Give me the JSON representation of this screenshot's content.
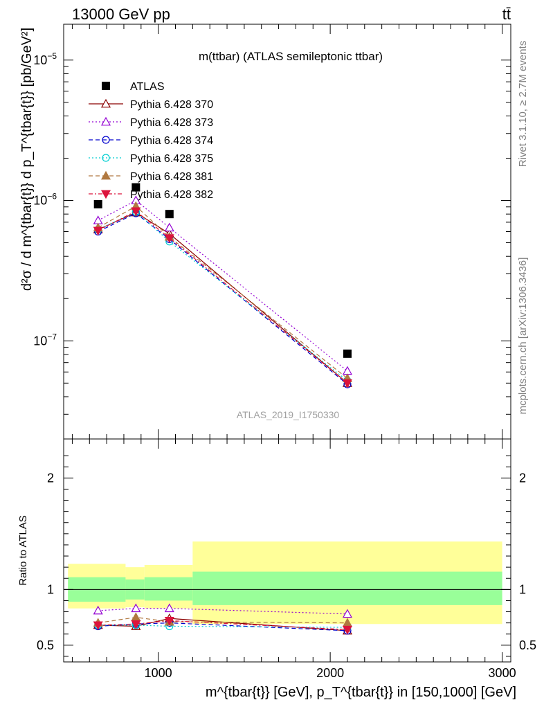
{
  "header": {
    "left": "13000 GeV pp",
    "right": "tt̄"
  },
  "side": {
    "rivet": "Rivet 3.1.10, ≥ 2.7M events",
    "mcplots": "mcplots.cern.ch [arXiv:1306.3436]"
  },
  "main_plot": {
    "title": "m(ttbar) (ATLAS semileptonic ttbar)",
    "analysis": "ATLAS_2019_I1750330",
    "ylabel": "d²σ / d m^{tbar{t}} d p_T^{tbar{t}} [pb/GeV²]"
  },
  "ratio_plot": {
    "ylabel": "Ratio to ATLAS"
  },
  "xaxis": {
    "label": "m^{tbar{t}} [GeV], p_T^{tbar{t}} in [150,1000] [GeV]"
  },
  "chart_data": [
    {
      "type": "scatter",
      "panel": "main",
      "title": "m(ttbar) (ATLAS semileptonic ttbar)",
      "xlabel": "m^{tbar{t}} [GeV], p_T^{tbar{t}} in [150,1000] [GeV]",
      "ylabel": "d²σ / d m^{tbar{t}} d p_T^{tbar{t}} [pb/GeV²]",
      "xlim": [
        450,
        3050
      ],
      "ylim": [
        2e-08,
        1.8e-05
      ],
      "yscale": "log",
      "x": [
        650,
        870,
        1065,
        2100
      ],
      "ref": {
        "name": "ATLAS",
        "marker": "square",
        "color": "#000000",
        "values": [
          9.4e-07,
          1.24e-06,
          8e-07,
          8.1e-08
        ]
      },
      "series": [
        {
          "name": "Pythia 6.428 370",
          "color": "#8b0000",
          "dash": "",
          "marker": "triangle-up-open",
          "values": [
            6.2e-07,
            8.2e-07,
            5.8e-07,
            5e-08
          ]
        },
        {
          "name": "Pythia 6.428 373",
          "color": "#9400d3",
          "dash": "2,3",
          "marker": "triangle-up-open",
          "values": [
            7.2e-07,
            1e-06,
            6.4e-07,
            6.1e-08
          ]
        },
        {
          "name": "Pythia 6.428 374",
          "color": "#0000cd",
          "dash": "6,4",
          "marker": "circle-open",
          "values": [
            6e-07,
            8.1e-07,
            5.3e-07,
            4.9e-08
          ]
        },
        {
          "name": "Pythia 6.428 375",
          "color": "#00ced1",
          "dash": "2,3",
          "marker": "circle-open",
          "values": [
            6.2e-07,
            8.3e-07,
            5.1e-07,
            5.2e-08
          ]
        },
        {
          "name": "Pythia 6.428 381",
          "color": "#b07840",
          "dash": "6,4",
          "marker": "triangle-up-filled",
          "values": [
            6.4e-07,
            9.1e-07,
            5.5e-07,
            5.4e-08
          ]
        },
        {
          "name": "Pythia 6.428 382",
          "color": "#dc143c",
          "dash": "6,3,2,3",
          "marker": "triangle-down-filled",
          "values": [
            6.1e-07,
            8.4e-07,
            5.4e-07,
            5e-08
          ]
        }
      ],
      "legend": "top-left"
    },
    {
      "type": "scatter",
      "panel": "ratio",
      "ylabel": "Ratio to ATLAS",
      "xlim": [
        450,
        3050
      ],
      "ylim": [
        0.35,
        2.35
      ],
      "yticks": [
        0.5,
        1,
        2
      ],
      "bins": [
        [
          475,
          810
        ],
        [
          810,
          920
        ],
        [
          920,
          1200
        ],
        [
          1200,
          3000
        ]
      ],
      "band_inner": [
        [
          0.89,
          1.11
        ],
        [
          0.91,
          1.09
        ],
        [
          0.9,
          1.11
        ],
        [
          0.86,
          1.16
        ]
      ],
      "band_outer": [
        [
          0.83,
          1.23
        ],
        [
          0.84,
          1.2
        ],
        [
          0.83,
          1.22
        ],
        [
          0.69,
          1.43
        ]
      ],
      "x": [
        650,
        870,
        1065,
        2100
      ],
      "series": [
        {
          "name": "Pythia 6.428 370",
          "values": [
            0.68,
            0.67,
            0.74,
            0.63
          ]
        },
        {
          "name": "Pythia 6.428 373",
          "values": [
            0.81,
            0.83,
            0.83,
            0.78
          ]
        },
        {
          "name": "Pythia 6.428 374",
          "values": [
            0.67,
            0.69,
            0.7,
            0.63
          ]
        },
        {
          "name": "Pythia 6.428 375",
          "values": [
            0.68,
            0.68,
            0.67,
            0.66
          ]
        },
        {
          "name": "Pythia 6.428 381",
          "values": [
            0.7,
            0.75,
            0.71,
            0.7
          ]
        },
        {
          "name": "Pythia 6.428 382",
          "values": [
            0.68,
            0.69,
            0.72,
            0.64
          ]
        }
      ]
    }
  ],
  "colors": {
    "band_inner": "#99ff99",
    "band_outer": "#ffff99"
  }
}
